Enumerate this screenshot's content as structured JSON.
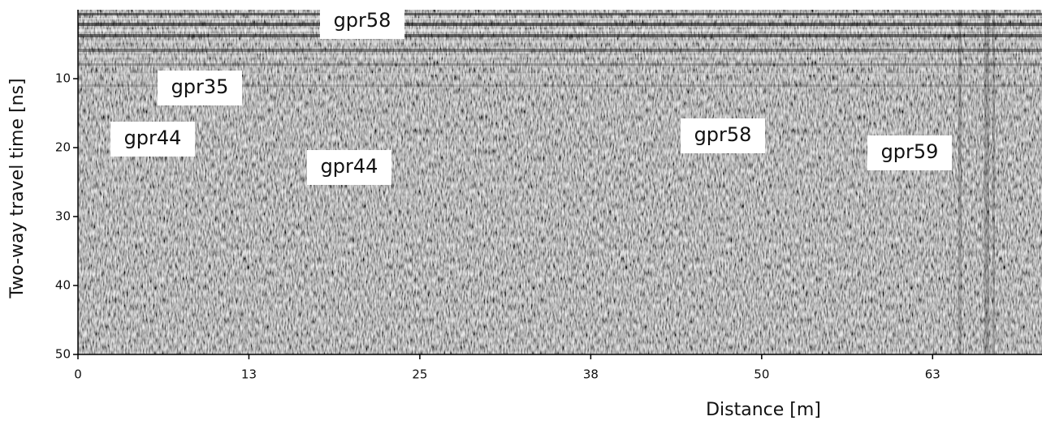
{
  "chart_data": {
    "type": "radargram",
    "x_label": "Distance [m]",
    "y_label": "Two-way travel time [ns]",
    "xlim": [
      0,
      70.5
    ],
    "xticks": [
      0,
      {
        "value": 12.5,
        "label": "13"
      },
      25,
      {
        "value": 37.5,
        "label": "38"
      },
      50,
      {
        "value": 62.5,
        "label": "63"
      }
    ],
    "ylim": [
      0,
      50
    ],
    "y_inverted": true,
    "yticks": [
      10,
      20,
      30,
      40,
      50
    ],
    "annotations": [
      "gpr58",
      "gpr35",
      "gpr44",
      "gpr44",
      "gpr58",
      "gpr59"
    ]
  }
}
